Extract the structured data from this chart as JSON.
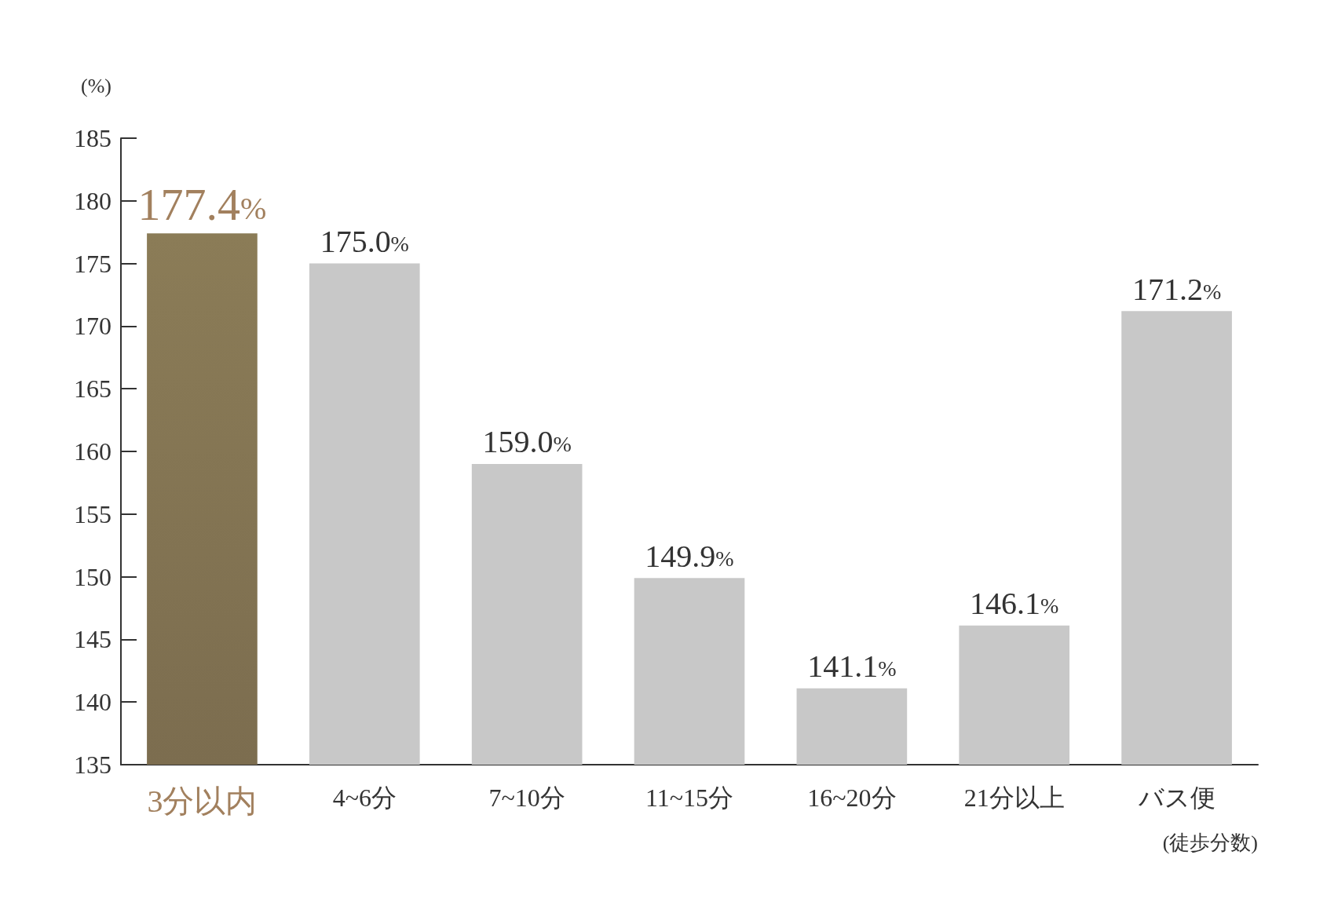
{
  "chart_data": {
    "type": "bar",
    "ylabel": "(%)",
    "xlabel": "(徒歩分数)",
    "categories": [
      "3分以内",
      "4~6分",
      "7~10分",
      "11~15分",
      "16~20分",
      "21分以上",
      "バス便"
    ],
    "values": [
      177.4,
      175.0,
      159.0,
      149.9,
      141.1,
      146.1,
      171.2
    ],
    "value_labels": [
      "177.4%",
      "175.0%",
      "159.0%",
      "149.9%",
      "141.1%",
      "146.1%",
      "171.2%"
    ],
    "colors": [
      "#8b7c57",
      "#c8c8c8",
      "#c8c8c8",
      "#c8c8c8",
      "#c8c8c8",
      "#c8c8c8",
      "#c8c8c8"
    ],
    "ylim": [
      135,
      185
    ],
    "yticks": [
      135,
      140,
      145,
      150,
      155,
      160,
      165,
      170,
      175,
      180,
      185
    ],
    "grid": false
  }
}
